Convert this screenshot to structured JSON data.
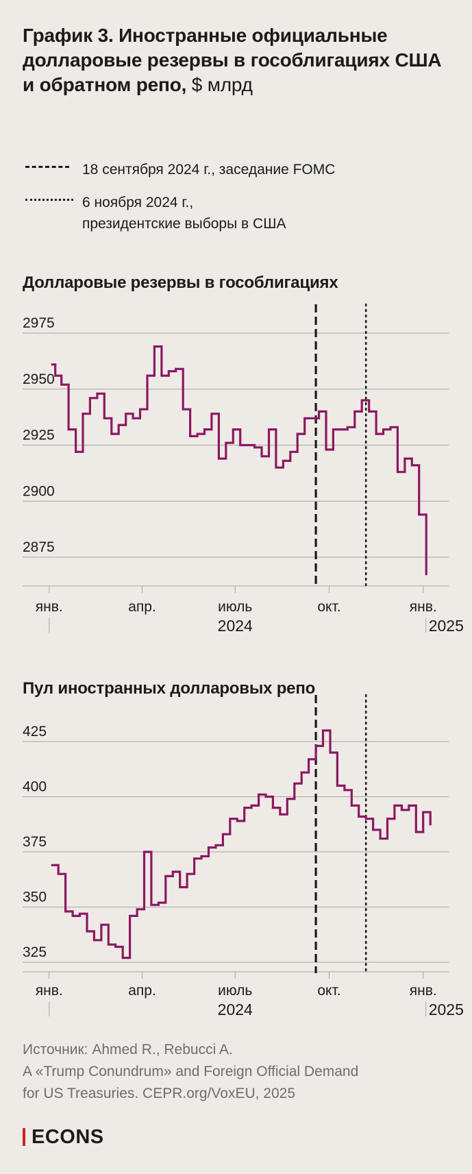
{
  "title": {
    "main": "График 3. Иностранные официальные долларовые резервы в гособлигациях США и обратном репо,",
    "unit": "$ млрд"
  },
  "legend": [
    {
      "style": "dashed",
      "text": "18 сентября 2024 г., заседание FOMC"
    },
    {
      "style": "dotted",
      "line1": "6 ноября 2024 г.,",
      "line2": "президентские выборы в США"
    }
  ],
  "colors": {
    "line": "#8C1862",
    "grid": "#A8A6A2",
    "accent": "#D0202E",
    "background": "#EEEBE6"
  },
  "chart_data": [
    {
      "type": "line",
      "title": "Долларовые резервы в гособлигациях",
      "x_tick_labels": [
        "янв.",
        "апр.",
        "июль",
        "окт.",
        "янв."
      ],
      "x_tick_dates": [
        "2024-01-01",
        "2024-04-01",
        "2024-07-01",
        "2024-10-01",
        "2025-01-01"
      ],
      "year_labels": [
        "2024",
        "2025"
      ],
      "y_ticks": [
        2875,
        2900,
        2925,
        2950,
        2975
      ],
      "ylim": [
        2862,
        2975
      ],
      "xlim": [
        "2023-12-06",
        "2025-01-26"
      ],
      "vlines": [
        {
          "date": "2024-09-18",
          "style": "dashed"
        },
        {
          "date": "2024-11-06",
          "style": "dotted"
        }
      ],
      "series": [
        {
          "step": true,
          "points": [
            [
              "2024-01-03",
              2961
            ],
            [
              "2024-01-07",
              2956
            ],
            [
              "2024-01-13",
              2952
            ],
            [
              "2024-01-20",
              2932
            ],
            [
              "2024-01-27",
              2922
            ],
            [
              "2024-02-03",
              2939
            ],
            [
              "2024-02-10",
              2946
            ],
            [
              "2024-02-17",
              2948
            ],
            [
              "2024-02-24",
              2937
            ],
            [
              "2024-03-02",
              2930
            ],
            [
              "2024-03-09",
              2934
            ],
            [
              "2024-03-16",
              2939
            ],
            [
              "2024-03-23",
              2937
            ],
            [
              "2024-03-30",
              2941
            ],
            [
              "2024-04-06",
              2956
            ],
            [
              "2024-04-13",
              2969
            ],
            [
              "2024-04-20",
              2956
            ],
            [
              "2024-04-27",
              2958
            ],
            [
              "2024-05-04",
              2959
            ],
            [
              "2024-05-11",
              2941
            ],
            [
              "2024-05-18",
              2929
            ],
            [
              "2024-05-25",
              2930
            ],
            [
              "2024-06-01",
              2932
            ],
            [
              "2024-06-08",
              2939
            ],
            [
              "2024-06-15",
              2919
            ],
            [
              "2024-06-22",
              2926
            ],
            [
              "2024-06-29",
              2932
            ],
            [
              "2024-07-06",
              2925
            ],
            [
              "2024-07-13",
              2925
            ],
            [
              "2024-07-20",
              2924
            ],
            [
              "2024-07-27",
              2920
            ],
            [
              "2024-08-03",
              2932
            ],
            [
              "2024-08-10",
              2915
            ],
            [
              "2024-08-17",
              2918
            ],
            [
              "2024-08-24",
              2922
            ],
            [
              "2024-08-31",
              2930
            ],
            [
              "2024-09-07",
              2937
            ],
            [
              "2024-09-14",
              2937
            ],
            [
              "2024-09-21",
              2940
            ],
            [
              "2024-09-28",
              2923
            ],
            [
              "2024-10-05",
              2932
            ],
            [
              "2024-10-12",
              2932
            ],
            [
              "2024-10-19",
              2933
            ],
            [
              "2024-10-26",
              2940
            ],
            [
              "2024-11-02",
              2945
            ],
            [
              "2024-11-09",
              2940
            ],
            [
              "2024-11-16",
              2930
            ],
            [
              "2024-11-23",
              2932
            ],
            [
              "2024-11-30",
              2933
            ],
            [
              "2024-12-07",
              2913
            ],
            [
              "2024-12-14",
              2919
            ],
            [
              "2024-12-21",
              2916
            ],
            [
              "2024-12-28",
              2894
            ],
            [
              "2025-01-04",
              2867
            ]
          ]
        }
      ]
    },
    {
      "type": "line",
      "title": "Пул иностранных долларовых репо",
      "x_tick_labels": [
        "янв.",
        "апр.",
        "июль",
        "окт.",
        "янв."
      ],
      "x_tick_dates": [
        "2024-01-01",
        "2024-04-01",
        "2024-07-01",
        "2024-10-01",
        "2025-01-01"
      ],
      "year_labels": [
        "2024",
        "2025"
      ],
      "y_ticks": [
        325,
        350,
        375,
        400,
        425
      ],
      "ylim": [
        319,
        425
      ],
      "xlim": [
        "2023-12-06",
        "2025-01-26"
      ],
      "vlines": [
        {
          "date": "2024-09-18",
          "style": "dashed"
        },
        {
          "date": "2024-11-06",
          "style": "dotted"
        }
      ],
      "series": [
        {
          "step": true,
          "points": [
            [
              "2024-01-03",
              369
            ],
            [
              "2024-01-10",
              365
            ],
            [
              "2024-01-17",
              348
            ],
            [
              "2024-01-24",
              346
            ],
            [
              "2024-01-31",
              347
            ],
            [
              "2024-02-07",
              339
            ],
            [
              "2024-02-14",
              335
            ],
            [
              "2024-02-21",
              342
            ],
            [
              "2024-02-28",
              333
            ],
            [
              "2024-03-06",
              332
            ],
            [
              "2024-03-13",
              327
            ],
            [
              "2024-03-20",
              346
            ],
            [
              "2024-03-27",
              349
            ],
            [
              "2024-04-03",
              375
            ],
            [
              "2024-04-10",
              351
            ],
            [
              "2024-04-17",
              352
            ],
            [
              "2024-04-24",
              364
            ],
            [
              "2024-05-01",
              366
            ],
            [
              "2024-05-08",
              359
            ],
            [
              "2024-05-15",
              365
            ],
            [
              "2024-05-22",
              372
            ],
            [
              "2024-05-29",
              373
            ],
            [
              "2024-06-05",
              377
            ],
            [
              "2024-06-12",
              378
            ],
            [
              "2024-06-19",
              383
            ],
            [
              "2024-06-26",
              390
            ],
            [
              "2024-07-03",
              389
            ],
            [
              "2024-07-10",
              395
            ],
            [
              "2024-07-17",
              396
            ],
            [
              "2024-07-24",
              401
            ],
            [
              "2024-07-31",
              400
            ],
            [
              "2024-08-07",
              395
            ],
            [
              "2024-08-14",
              392
            ],
            [
              "2024-08-21",
              399
            ],
            [
              "2024-08-28",
              406
            ],
            [
              "2024-09-04",
              411
            ],
            [
              "2024-09-11",
              417
            ],
            [
              "2024-09-18",
              423
            ],
            [
              "2024-09-25",
              430
            ],
            [
              "2024-10-02",
              420
            ],
            [
              "2024-10-09",
              405
            ],
            [
              "2024-10-16",
              403
            ],
            [
              "2024-10-23",
              396
            ],
            [
              "2024-10-30",
              391
            ],
            [
              "2024-11-06",
              390
            ],
            [
              "2024-11-13",
              385
            ],
            [
              "2024-11-20",
              381
            ],
            [
              "2024-11-27",
              390
            ],
            [
              "2024-12-04",
              396
            ],
            [
              "2024-12-11",
              394
            ],
            [
              "2024-12-18",
              396
            ],
            [
              "2024-12-25",
              384
            ],
            [
              "2025-01-01",
              393
            ],
            [
              "2025-01-08",
              387
            ]
          ]
        }
      ]
    }
  ],
  "source": {
    "line1": "Источник: Ahmed R., Rebucci A.",
    "line2": "A «Trump Conundrum» and Foreign Official Demand",
    "line3": "for US Treasuries. CEPR.org/VoxEU, 2025"
  },
  "brand": "ECONS"
}
